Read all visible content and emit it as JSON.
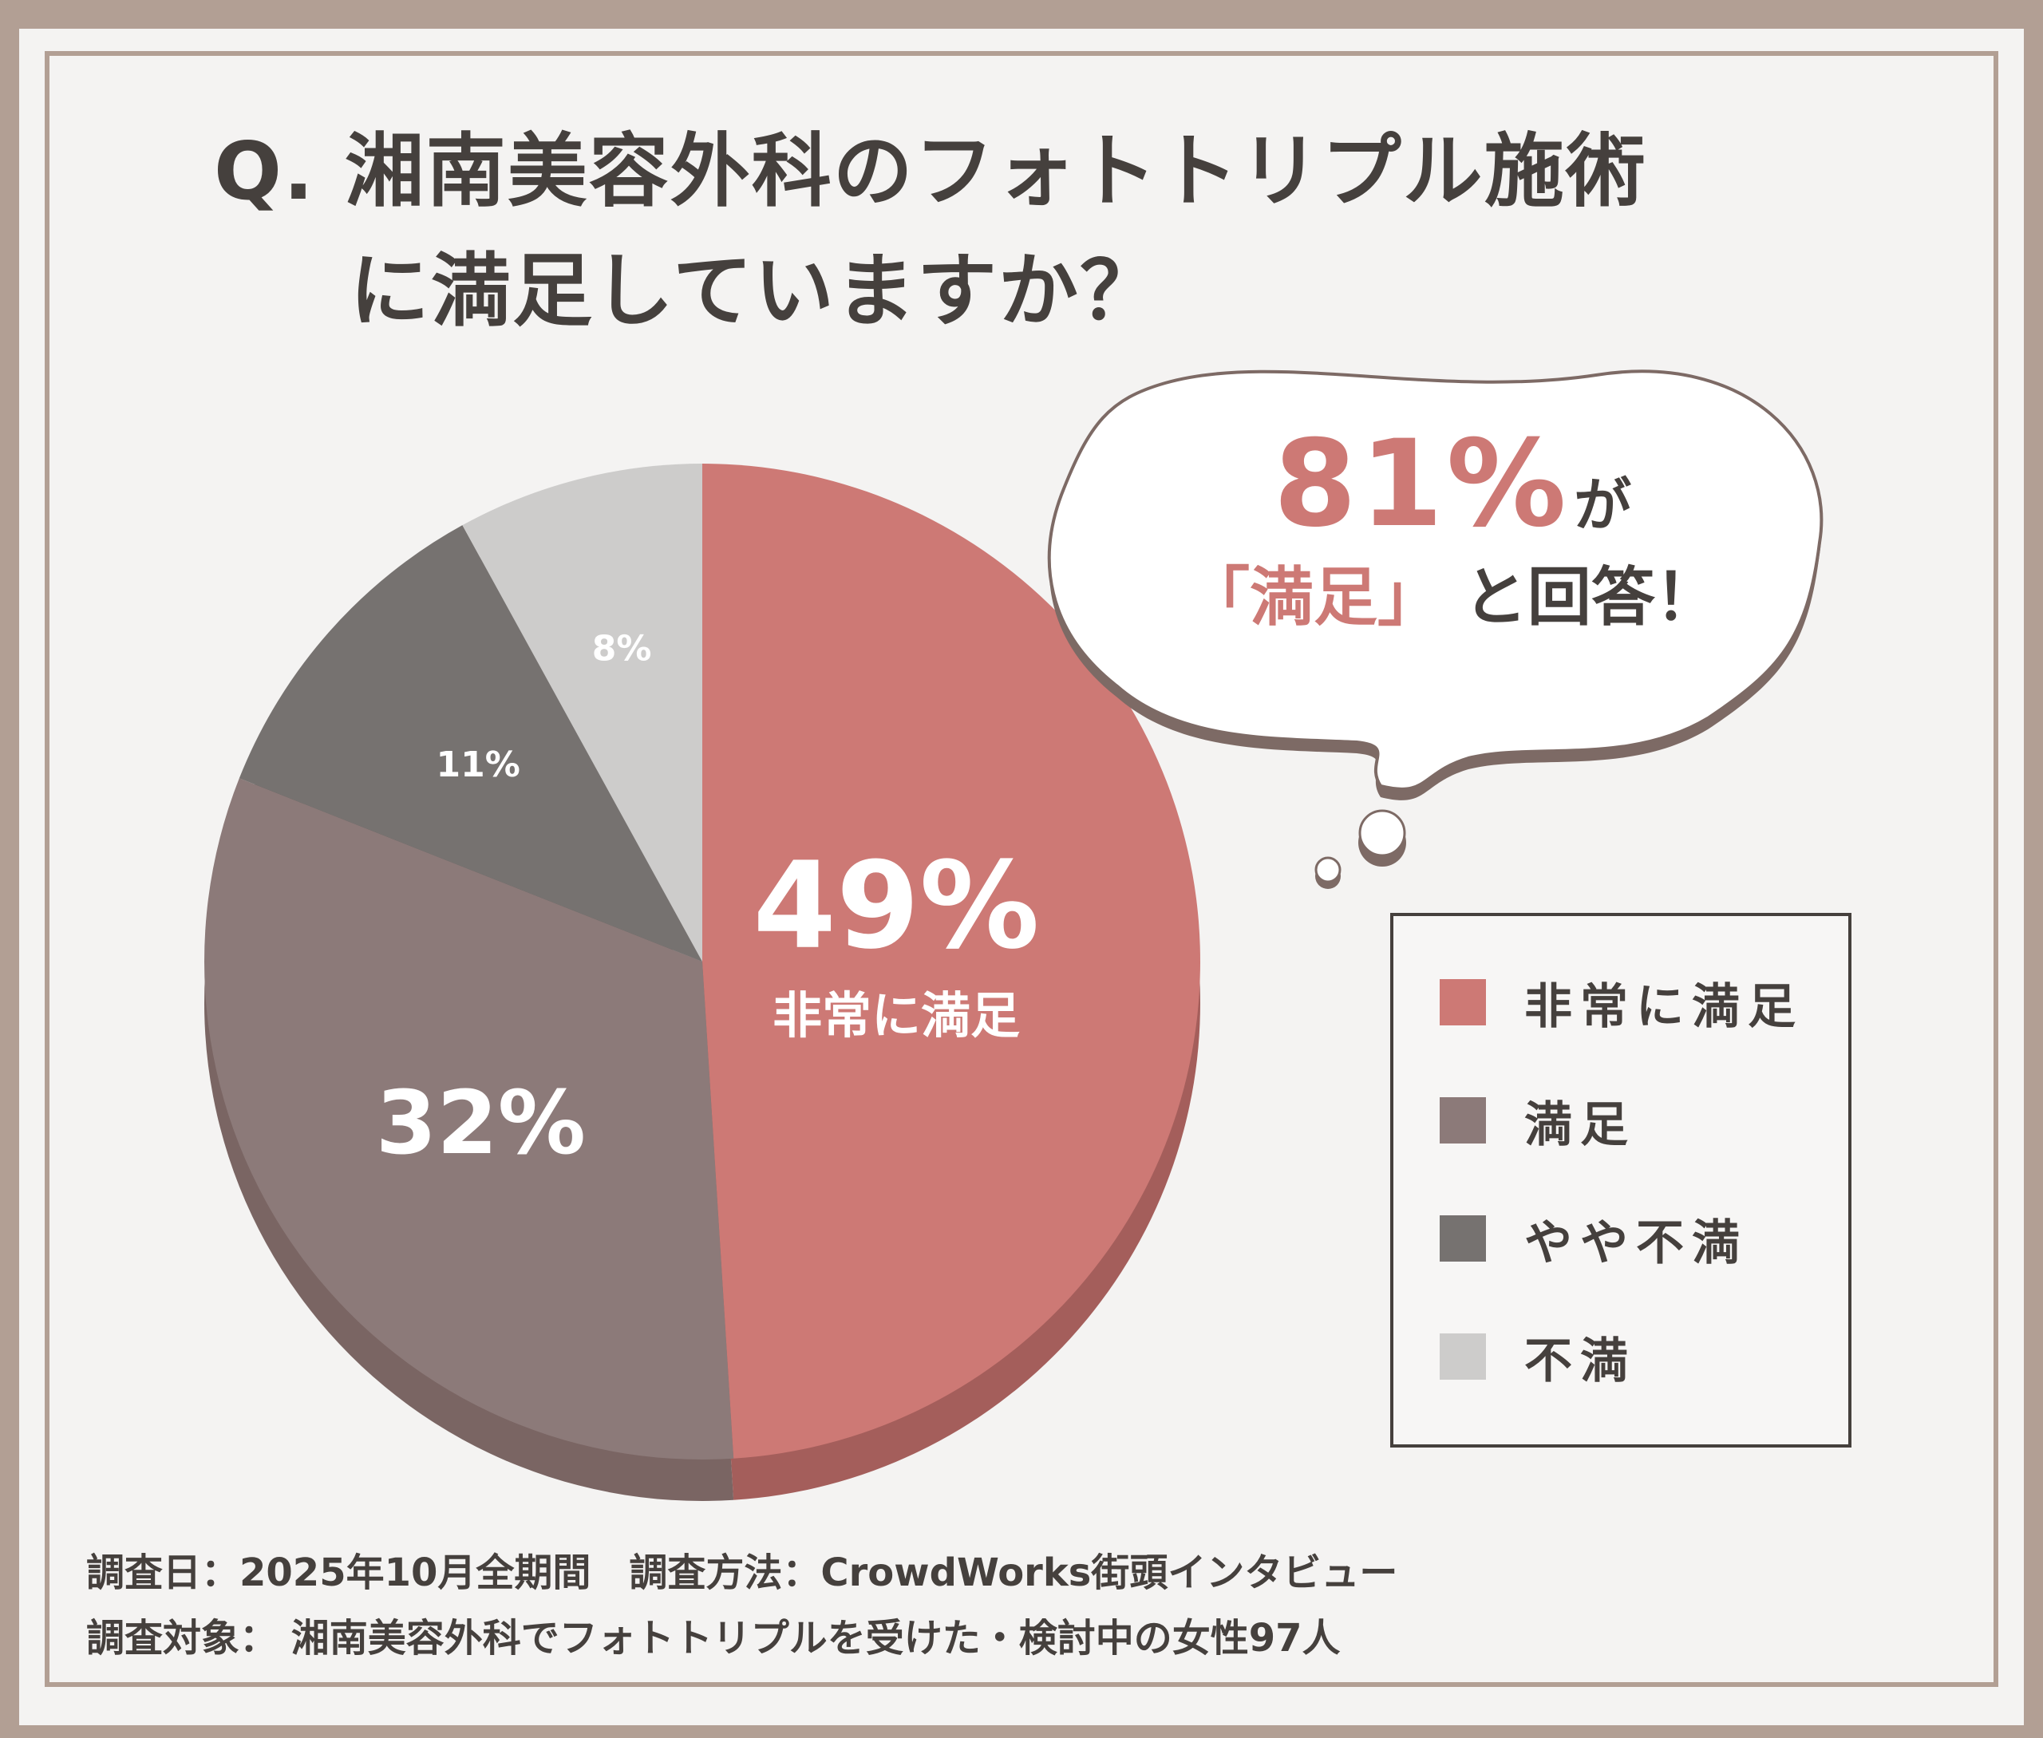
{
  "title": {
    "line1": "Q. 湘南美容外科のフォトトリプル施術",
    "line2": "に満足していますか？"
  },
  "callout": {
    "percent": "81%",
    "ga": "が",
    "quote": "「満足」",
    "answer": "と回答！"
  },
  "chart_data": {
    "type": "pie",
    "categories": [
      "非常に満足",
      "満足",
      "やや不満",
      "不満"
    ],
    "values": [
      49,
      32,
      11,
      8
    ],
    "value_labels": [
      "49%",
      "32%",
      "11%",
      "8%"
    ],
    "slice_caption": "非常に満足",
    "colors": [
      "#cd7975",
      "#8c7a79",
      "#767270",
      "#cdcccb"
    ],
    "side_colors": [
      "#a45e5b",
      "#7a6563",
      "#5d5957",
      "#a9a8a7"
    ],
    "legend_position": "right",
    "title": "Q. 湘南美容外科のフォトトリプル施術に満足していますか？"
  },
  "legend": {
    "items": [
      {
        "label": "非常に満足",
        "color": "#cd7975"
      },
      {
        "label": "満足",
        "color": "#8c7a79"
      },
      {
        "label": "やや不満",
        "color": "#767270"
      },
      {
        "label": "不満",
        "color": "#cdcccb"
      }
    ]
  },
  "footer": {
    "line1": "調査日：2025年10月全期間　調査方法：CrowdWorks街頭インタビュー",
    "line2": "調査対象： 湘南美容外科でフォトトリプルを受けた・検討中の女性97人"
  }
}
